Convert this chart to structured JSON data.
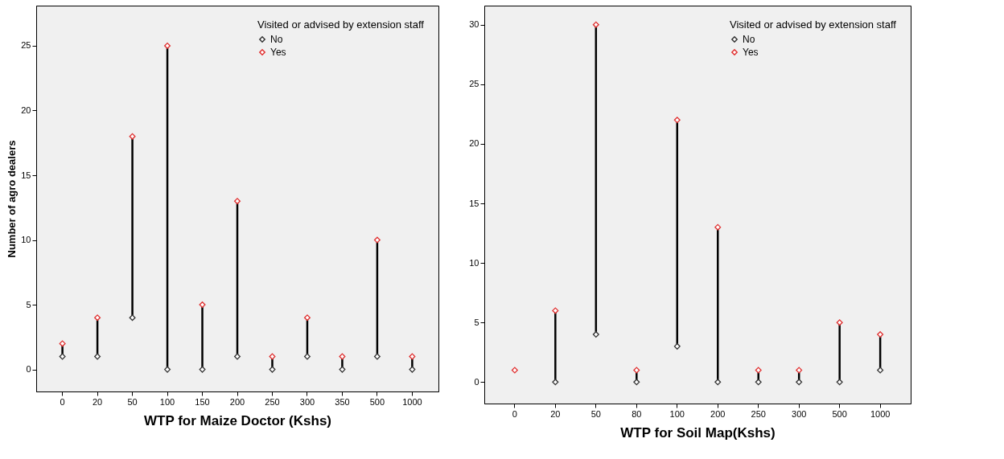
{
  "chart_data": [
    {
      "type": "scatter",
      "xlabel": "WTP for Maize Doctor (Kshs)",
      "ylabel": "Number of agro dealers",
      "legend_title": "Visited or advised by extension staff",
      "legend": "top right",
      "marker": "diamond",
      "categories": [
        "0",
        "20",
        "50",
        "100",
        "150",
        "200",
        "250",
        "300",
        "350",
        "500",
        "1000"
      ],
      "ylim": [
        -1.7,
        28.1
      ],
      "yticks": [
        0,
        5,
        10,
        15,
        20,
        25
      ],
      "series": [
        {
          "name": "No",
          "color": "#333333",
          "values": [
            1,
            1,
            4,
            0,
            0,
            1,
            0,
            1,
            0,
            1,
            0
          ]
        },
        {
          "name": "Yes",
          "color": "#e03030",
          "values": [
            2,
            4,
            18,
            25,
            5,
            13,
            1,
            4,
            1,
            10,
            1
          ]
        }
      ]
    },
    {
      "type": "scatter",
      "xlabel": "WTP for Soil Map(Kshs)",
      "legend_title": "Visited or advised by extension staff",
      "legend": "top right",
      "marker": "diamond",
      "categories": [
        "0",
        "20",
        "50",
        "80",
        "100",
        "200",
        "250",
        "300",
        "500",
        "1000"
      ],
      "ylim": [
        -1.8,
        31.6
      ],
      "yticks": [
        0,
        5,
        10,
        15,
        20,
        25,
        30
      ],
      "series": [
        {
          "name": "No",
          "color": "#333333",
          "values": [
            null,
            0,
            4,
            0,
            3,
            0,
            0,
            0,
            0,
            1
          ]
        },
        {
          "name": "Yes",
          "color": "#e03030",
          "values": [
            1,
            6,
            30,
            1,
            22,
            13,
            1,
            1,
            5,
            4
          ]
        }
      ]
    }
  ]
}
